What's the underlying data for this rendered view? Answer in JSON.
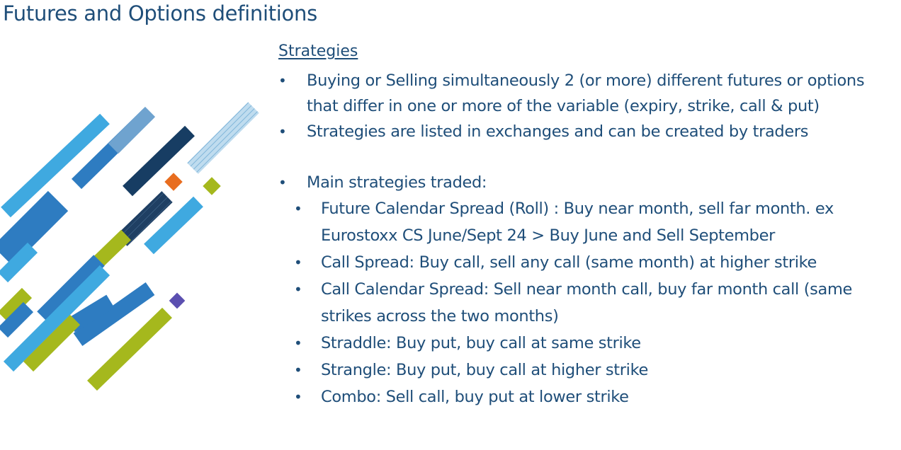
{
  "slide": {
    "title": "Futures and Options definitions"
  },
  "content": {
    "heading": "Strategies",
    "bullets": [
      "Buying or Selling simultaneously 2 (or more) different futures or options that differ in one or more of the variable (expiry, strike, call & put)",
      "Strategies are listed in exchanges and can be created by traders",
      "Main strategies traded:"
    ],
    "sub_bullets": [
      "Future Calendar Spread (Roll) : Buy near month, sell far month. ex Eurostoxx CS June/Sept 24 > Buy June and Sell September",
      "Call Spread: Buy call, sell any call (same month) at higher strike",
      "Call Calendar Spread: Sell near month call, buy far month call (same strikes across the two months)",
      "Straddle: Buy put, buy call at same strike",
      "Strangle: Buy put, buy call at higher strike",
      "Combo: Sell call, buy put at lower strike"
    ]
  },
  "decoration": {
    "colors": {
      "light_blue": "#3fa9e0",
      "mid_blue": "#2e7cc1",
      "steel_blue": "#5b9bd5",
      "navy": "#173d63",
      "lime": "#a5b81d",
      "orange": "#e86d1f",
      "purple": "#5b4fb0"
    }
  }
}
